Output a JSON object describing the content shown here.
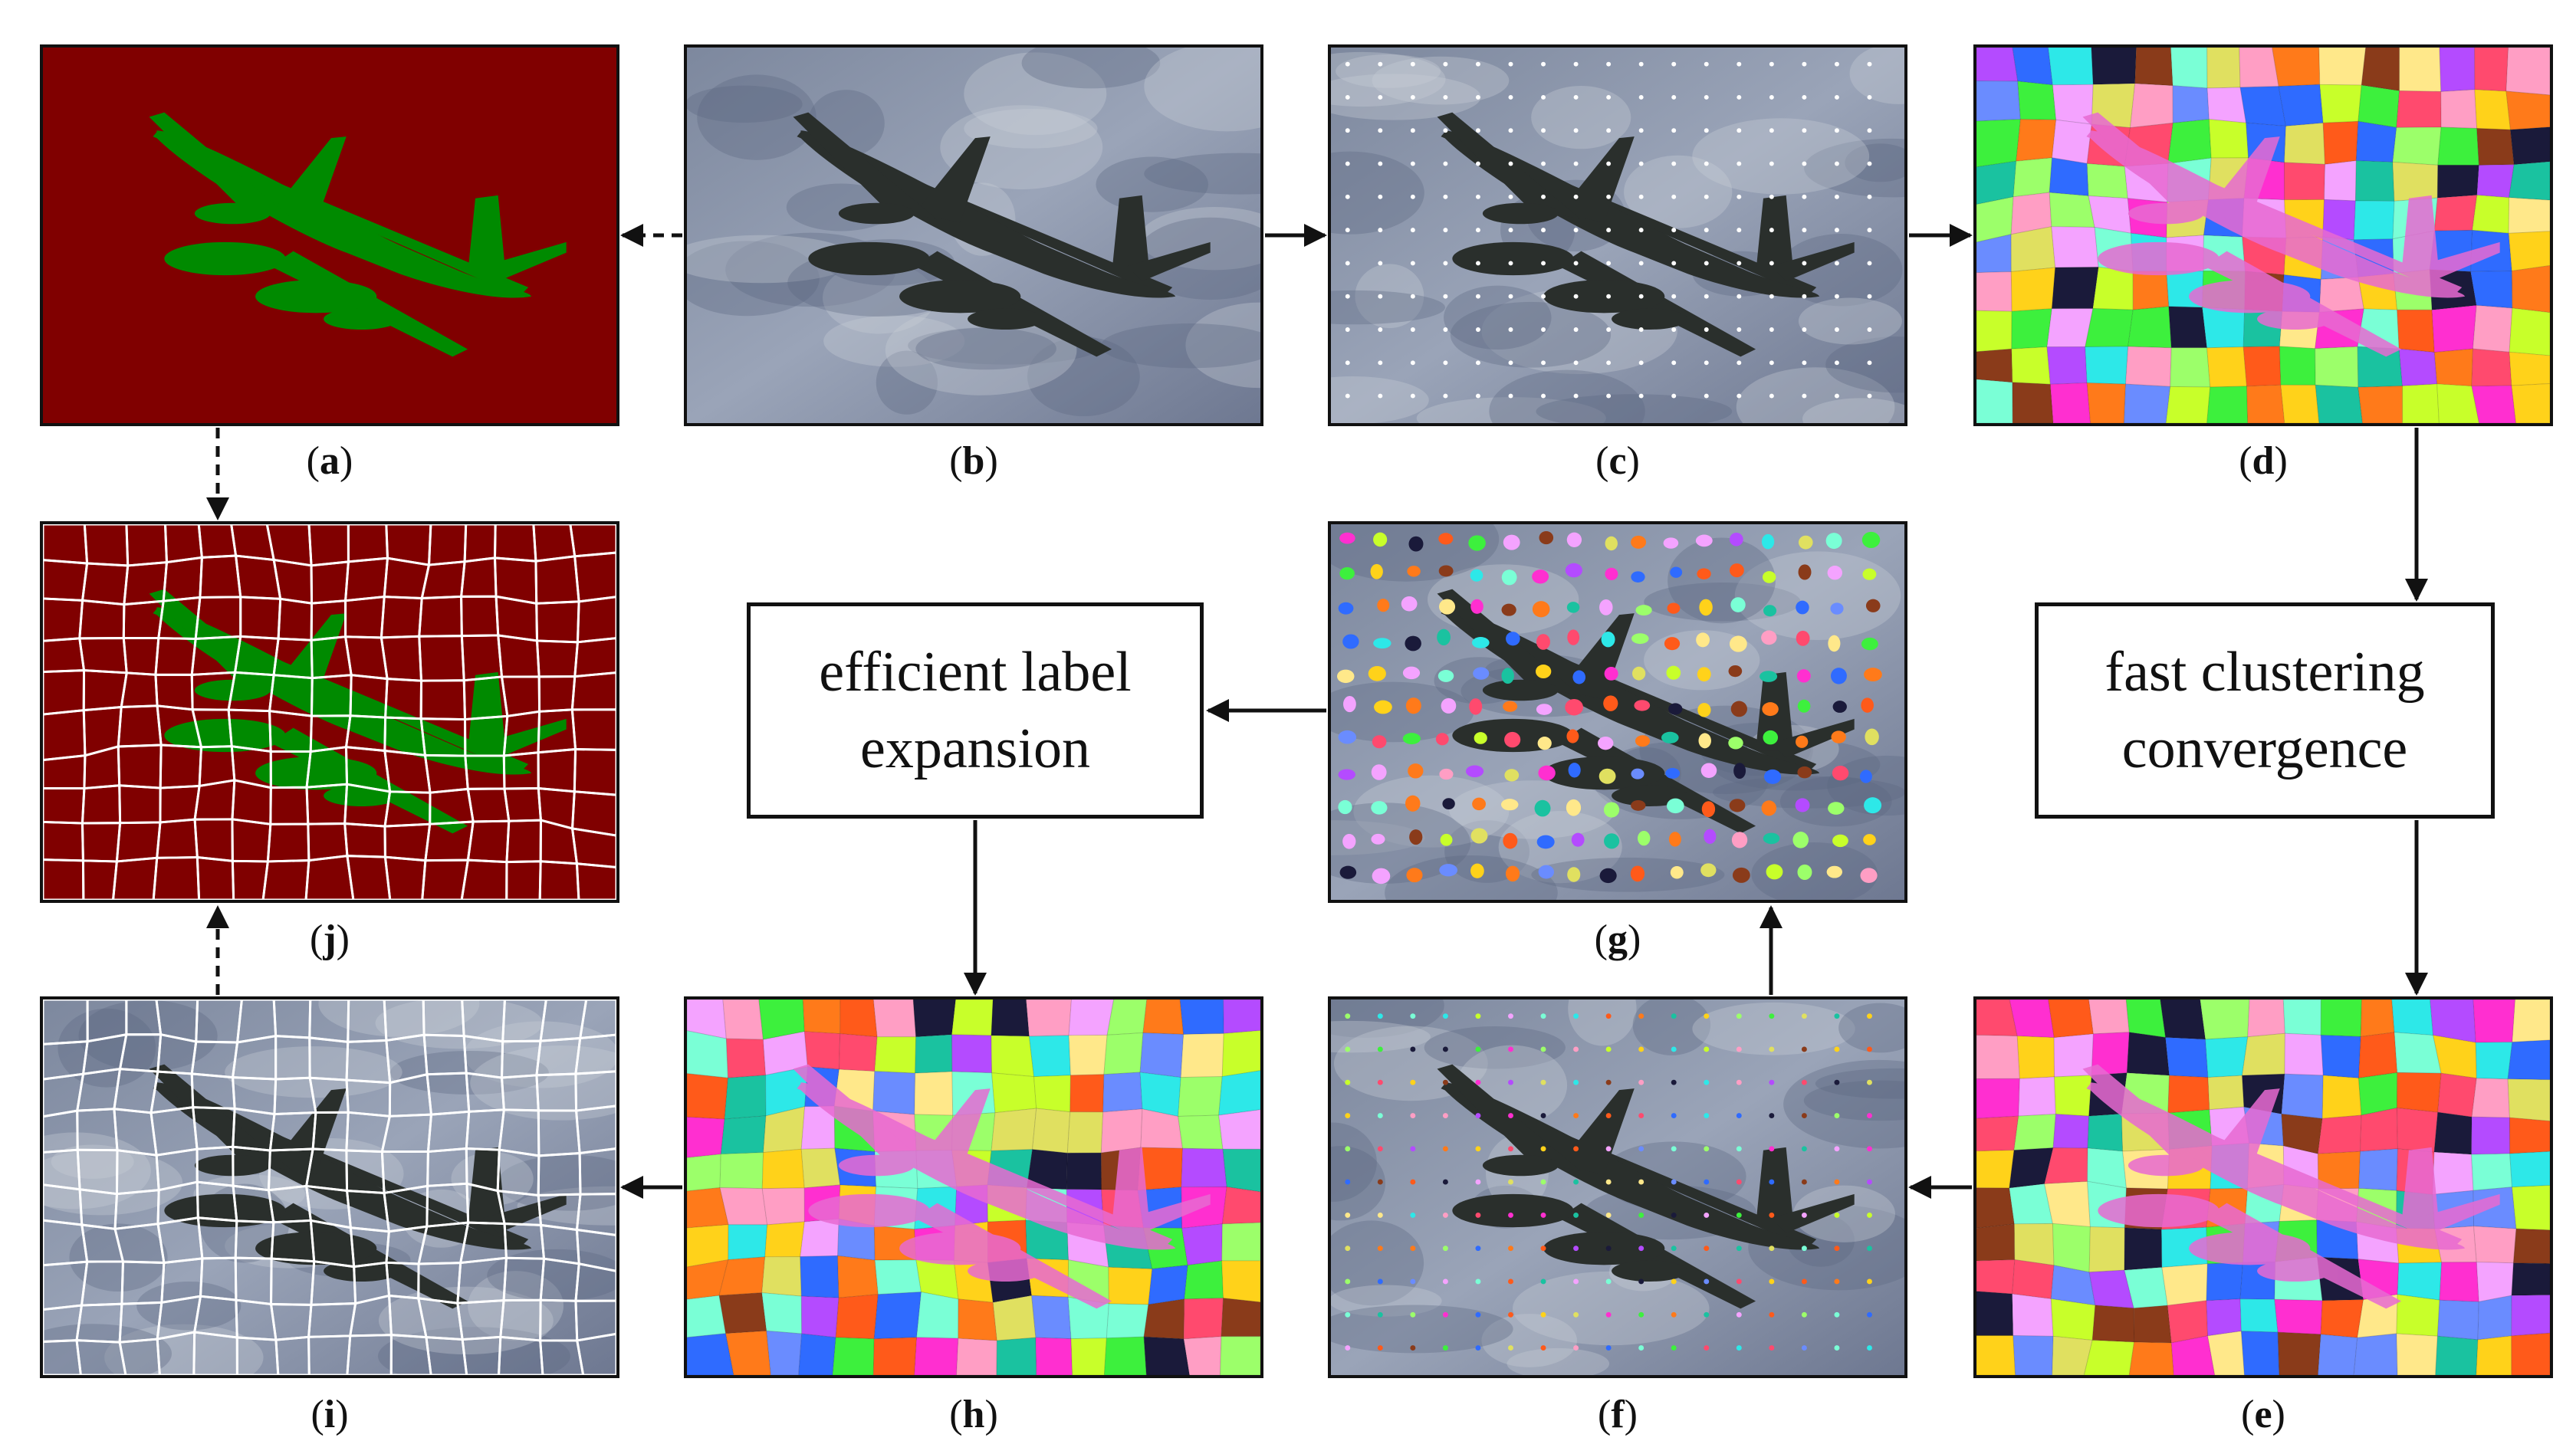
{
  "panels": [
    {
      "id": "a",
      "label": "a",
      "kind": "mask"
    },
    {
      "id": "b",
      "label": "b",
      "kind": "photo"
    },
    {
      "id": "c",
      "label": "c",
      "kind": "seeds-white"
    },
    {
      "id": "d",
      "label": "d",
      "kind": "superpixels"
    },
    {
      "id": "e",
      "label": "e",
      "kind": "superpixels"
    },
    {
      "id": "f",
      "label": "f",
      "kind": "seeds-colored"
    },
    {
      "id": "g",
      "label": "g",
      "kind": "blobs"
    },
    {
      "id": "h",
      "label": "h",
      "kind": "superpixels"
    },
    {
      "id": "i",
      "label": "i",
      "kind": "photo-boundaries"
    },
    {
      "id": "j",
      "label": "j",
      "kind": "mask-boundaries"
    }
  ],
  "process_boxes": {
    "clustering": {
      "line1": "fast clustering",
      "line2": "convergence"
    },
    "expansion": {
      "line1": "efficient label",
      "line2": "expansion"
    }
  },
  "colors": {
    "mask_background": "#800000",
    "mask_object": "#008a00",
    "sky": "#9aa4b8",
    "plane": "#2a2f2c",
    "boundary": "#ffffff"
  }
}
